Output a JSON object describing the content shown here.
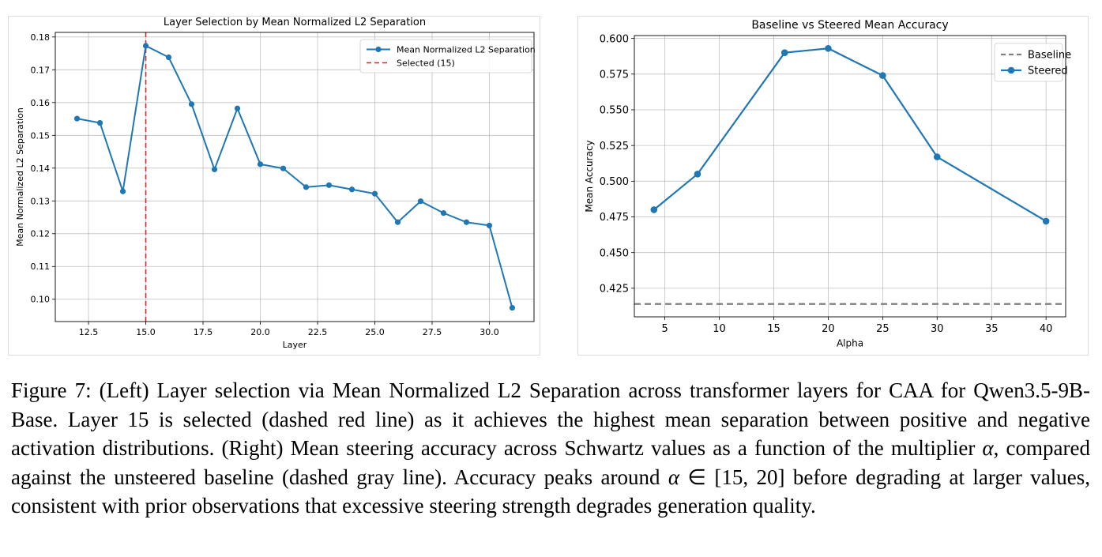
{
  "chart_data": [
    {
      "type": "line",
      "title": "Layer Selection by Mean Normalized L2 Separation",
      "xlabel": "Layer",
      "ylabel": "Mean Normalized L2 Separation",
      "xlim": [
        11.05,
        31.95
      ],
      "ylim": [
        0.0932,
        0.1814
      ],
      "xticks": [
        "12.5",
        "15.0",
        "17.5",
        "20.0",
        "22.5",
        "25.0",
        "27.5",
        "30.0"
      ],
      "yticks": [
        "0.10",
        "0.11",
        "0.12",
        "0.13",
        "0.14",
        "0.15",
        "0.16",
        "0.17",
        "0.18"
      ],
      "grid": true,
      "legend": "top-right",
      "series": [
        {
          "name": "Mean Normalized L2 Separation",
          "color": "#1f77b4",
          "x": [
            12,
            13,
            14,
            15,
            16,
            17,
            18,
            19,
            20,
            21,
            22,
            23,
            24,
            25,
            26,
            27,
            28,
            29,
            30,
            31
          ],
          "y": [
            0.1551,
            0.1538,
            0.1329,
            0.1773,
            0.1738,
            0.1595,
            0.1396,
            0.1582,
            0.1412,
            0.1399,
            0.1342,
            0.1348,
            0.1335,
            0.1322,
            0.1235,
            0.1299,
            0.1263,
            0.1235,
            0.1225,
            0.0974
          ]
        }
      ],
      "vline": {
        "name": "Selected (15)",
        "x": 15,
        "color": "#d62728"
      }
    },
    {
      "type": "line",
      "title": "Baseline vs Steered Mean Accuracy",
      "xlabel": "Alpha",
      "ylabel": "Mean Accuracy",
      "xlim": [
        2.2,
        41.8
      ],
      "ylim": [
        0.405,
        0.602
      ],
      "xticks": [
        "5",
        "10",
        "15",
        "20",
        "25",
        "30",
        "35",
        "40"
      ],
      "yticks": [
        "0.425",
        "0.450",
        "0.475",
        "0.500",
        "0.525",
        "0.550",
        "0.575",
        "0.600"
      ],
      "grid": true,
      "legend": "top-right",
      "baseline": {
        "name": "Baseline",
        "y": 0.414,
        "color": "#7f7f7f"
      },
      "series": [
        {
          "name": "Steered",
          "color": "#1f77b4",
          "x": [
            4,
            8,
            16,
            20,
            25,
            30,
            40
          ],
          "y": [
            0.48,
            0.505,
            0.59,
            0.593,
            0.574,
            0.517,
            0.472
          ]
        }
      ]
    }
  ],
  "caption": {
    "figure_label": "Figure 7:",
    "text_before_alpha1": " (Left) Layer selection via Mean Normalized L2 Separation across transformer layers for CAA for Qwen3.5-9B-Base. Layer 15 is selected (dashed red line) as it achieves the highest mean separation between positive and negative activation distributions. (Right) Mean steering accuracy across Schwartz values as a function of the multiplier ",
    "alpha_symbol": "α",
    "text_before_alpha2": ", compared against the unsteered baseline (dashed gray line). Accuracy peaks around ",
    "text_after_alpha2": " ∈ [15, 20] before degrading at larger values, consistent with prior observations that excessive steering strength degrades generation quality."
  }
}
